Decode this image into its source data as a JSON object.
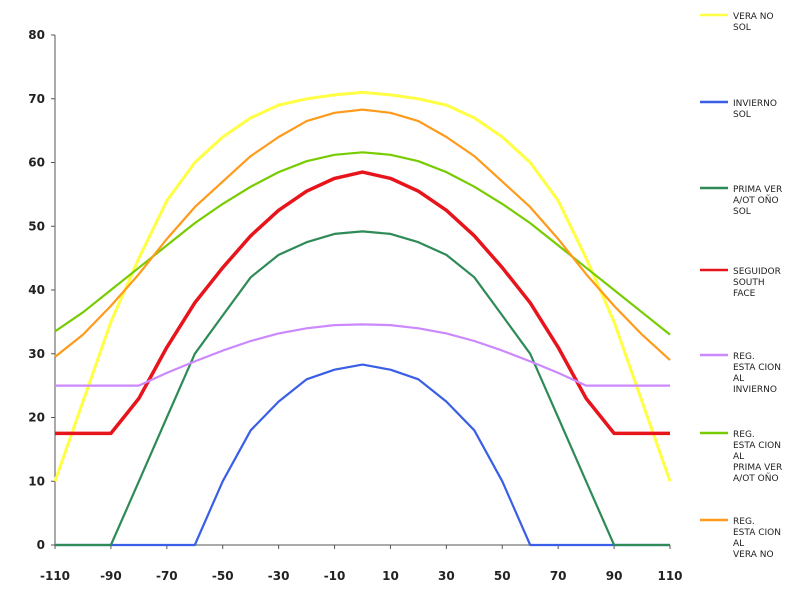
{
  "chart_data": {
    "type": "line",
    "xlim": [
      -110,
      110
    ],
    "ylim": [
      0,
      80
    ],
    "x_ticks": [
      -110,
      -90,
      -70,
      -50,
      -30,
      -10,
      10,
      30,
      50,
      70,
      90,
      110
    ],
    "y_ticks": [
      0,
      10,
      20,
      30,
      40,
      50,
      60,
      70,
      80
    ],
    "grid": false,
    "legend_position": "right",
    "series": [
      {
        "name": "VERANO SOL",
        "color": "#ffff44",
        "legend_lines": [
          "VERA NO",
          "SOL"
        ],
        "points": [
          [
            -110,
            10
          ],
          [
            -90,
            35
          ],
          [
            -80,
            45
          ],
          [
            -70,
            54
          ],
          [
            -60,
            60
          ],
          [
            -50,
            64
          ],
          [
            -40,
            67
          ],
          [
            -30,
            69
          ],
          [
            -20,
            70
          ],
          [
            -10,
            70.6
          ],
          [
            0,
            71
          ],
          [
            10,
            70.6
          ],
          [
            20,
            70
          ],
          [
            30,
            69
          ],
          [
            40,
            67
          ],
          [
            50,
            64
          ],
          [
            60,
            60
          ],
          [
            70,
            54
          ],
          [
            80,
            45
          ],
          [
            90,
            35
          ],
          [
            110,
            10
          ]
        ]
      },
      {
        "name": "INVIERNO SOL",
        "color": "#3a5fe6",
        "legend_lines": [
          "INVIERNO",
          "SOL"
        ],
        "points": [
          [
            -110,
            0
          ],
          [
            -60,
            0
          ],
          [
            -50,
            10
          ],
          [
            -40,
            18
          ],
          [
            -30,
            22.5
          ],
          [
            -20,
            26
          ],
          [
            -10,
            27.5
          ],
          [
            0,
            28.3
          ],
          [
            10,
            27.5
          ],
          [
            20,
            26
          ],
          [
            30,
            22.5
          ],
          [
            40,
            18
          ],
          [
            50,
            10
          ],
          [
            60,
            0
          ],
          [
            110,
            0
          ]
        ]
      },
      {
        "name": "PRIMAVERA/OTOÑO SOL",
        "color": "#2e8b57",
        "legend_lines": [
          "PRIMA VER",
          "A/OT OÑO",
          "SOL"
        ],
        "points": [
          [
            -110,
            0
          ],
          [
            -90,
            0
          ],
          [
            -80,
            10
          ],
          [
            -70,
            20
          ],
          [
            -60,
            30
          ],
          [
            -50,
            36
          ],
          [
            -40,
            42
          ],
          [
            -30,
            45.5
          ],
          [
            -20,
            47.5
          ],
          [
            -10,
            48.8
          ],
          [
            0,
            49.2
          ],
          [
            10,
            48.8
          ],
          [
            20,
            47.5
          ],
          [
            30,
            45.5
          ],
          [
            40,
            42
          ],
          [
            50,
            36
          ],
          [
            60,
            30
          ],
          [
            70,
            20
          ],
          [
            80,
            10
          ],
          [
            90,
            0
          ],
          [
            110,
            0
          ]
        ]
      },
      {
        "name": "SEGUIDOR SOUTH FACE",
        "color": "#e8141c",
        "legend_lines": [
          "SEGUIDOR",
          "SOUTH",
          "FACE"
        ],
        "points": [
          [
            -110,
            17.5
          ],
          [
            -90,
            17.5
          ],
          [
            -80,
            23
          ],
          [
            -70,
            31
          ],
          [
            -60,
            38
          ],
          [
            -50,
            43.5
          ],
          [
            -40,
            48.5
          ],
          [
            -30,
            52.5
          ],
          [
            -20,
            55.5
          ],
          [
            -10,
            57.5
          ],
          [
            0,
            58.5
          ],
          [
            10,
            57.5
          ],
          [
            20,
            55.5
          ],
          [
            30,
            52.5
          ],
          [
            40,
            48.5
          ],
          [
            50,
            43.5
          ],
          [
            60,
            38
          ],
          [
            70,
            31
          ],
          [
            80,
            23
          ],
          [
            90,
            17.5
          ],
          [
            110,
            17.5
          ]
        ]
      },
      {
        "name": "REG. ESTACIONAL INVIERNO",
        "color": "#cc88ff",
        "legend_lines": [
          "REG.",
          "ESTA CION",
          "AL",
          "INVIERNO"
        ],
        "points": [
          [
            -110,
            25
          ],
          [
            -80,
            25
          ],
          [
            -70,
            27
          ],
          [
            -60,
            28.8
          ],
          [
            -50,
            30.5
          ],
          [
            -40,
            32
          ],
          [
            -30,
            33.2
          ],
          [
            -20,
            34
          ],
          [
            -10,
            34.5
          ],
          [
            0,
            34.6
          ],
          [
            10,
            34.5
          ],
          [
            20,
            34
          ],
          [
            30,
            33.2
          ],
          [
            40,
            32
          ],
          [
            50,
            30.5
          ],
          [
            60,
            28.8
          ],
          [
            70,
            27
          ],
          [
            80,
            25
          ],
          [
            110,
            25
          ]
        ]
      },
      {
        "name": "REG. ESTACIONAL PRIMAVERA/OTOÑO",
        "color": "#77cc00",
        "legend_lines": [
          "REG.",
          "ESTA CION",
          "AL",
          "PRIMA VER",
          "A/OT OÑO"
        ],
        "points": [
          [
            -110,
            33.5
          ],
          [
            -100,
            36.5
          ],
          [
            -90,
            40
          ],
          [
            -80,
            43.5
          ],
          [
            -70,
            47
          ],
          [
            -60,
            50.5
          ],
          [
            -50,
            53.5
          ],
          [
            -40,
            56.2
          ],
          [
            -30,
            58.5
          ],
          [
            -20,
            60.2
          ],
          [
            -10,
            61.2
          ],
          [
            0,
            61.6
          ],
          [
            10,
            61.2
          ],
          [
            20,
            60.2
          ],
          [
            30,
            58.5
          ],
          [
            40,
            56.2
          ],
          [
            50,
            53.5
          ],
          [
            60,
            50.5
          ],
          [
            70,
            47
          ],
          [
            80,
            43.5
          ],
          [
            90,
            40
          ],
          [
            100,
            36.5
          ],
          [
            110,
            33
          ]
        ]
      },
      {
        "name": "REG. ESTACIONAL VERANO",
        "color": "#ff9a1a",
        "legend_lines": [
          "REG.",
          "ESTA CION",
          "AL",
          "VERA NO"
        ],
        "points": [
          [
            -110,
            29.5
          ],
          [
            -100,
            33
          ],
          [
            -90,
            37.5
          ],
          [
            -80,
            42.5
          ],
          [
            -70,
            48
          ],
          [
            -60,
            53
          ],
          [
            -50,
            57
          ],
          [
            -40,
            61
          ],
          [
            -30,
            64
          ],
          [
            -20,
            66.5
          ],
          [
            -10,
            67.8
          ],
          [
            0,
            68.3
          ],
          [
            10,
            67.8
          ],
          [
            20,
            66.5
          ],
          [
            30,
            64
          ],
          [
            40,
            61
          ],
          [
            50,
            57
          ],
          [
            60,
            53
          ],
          [
            70,
            48
          ],
          [
            80,
            42.5
          ],
          [
            90,
            37.5
          ],
          [
            100,
            33
          ],
          [
            110,
            29
          ]
        ]
      }
    ]
  }
}
